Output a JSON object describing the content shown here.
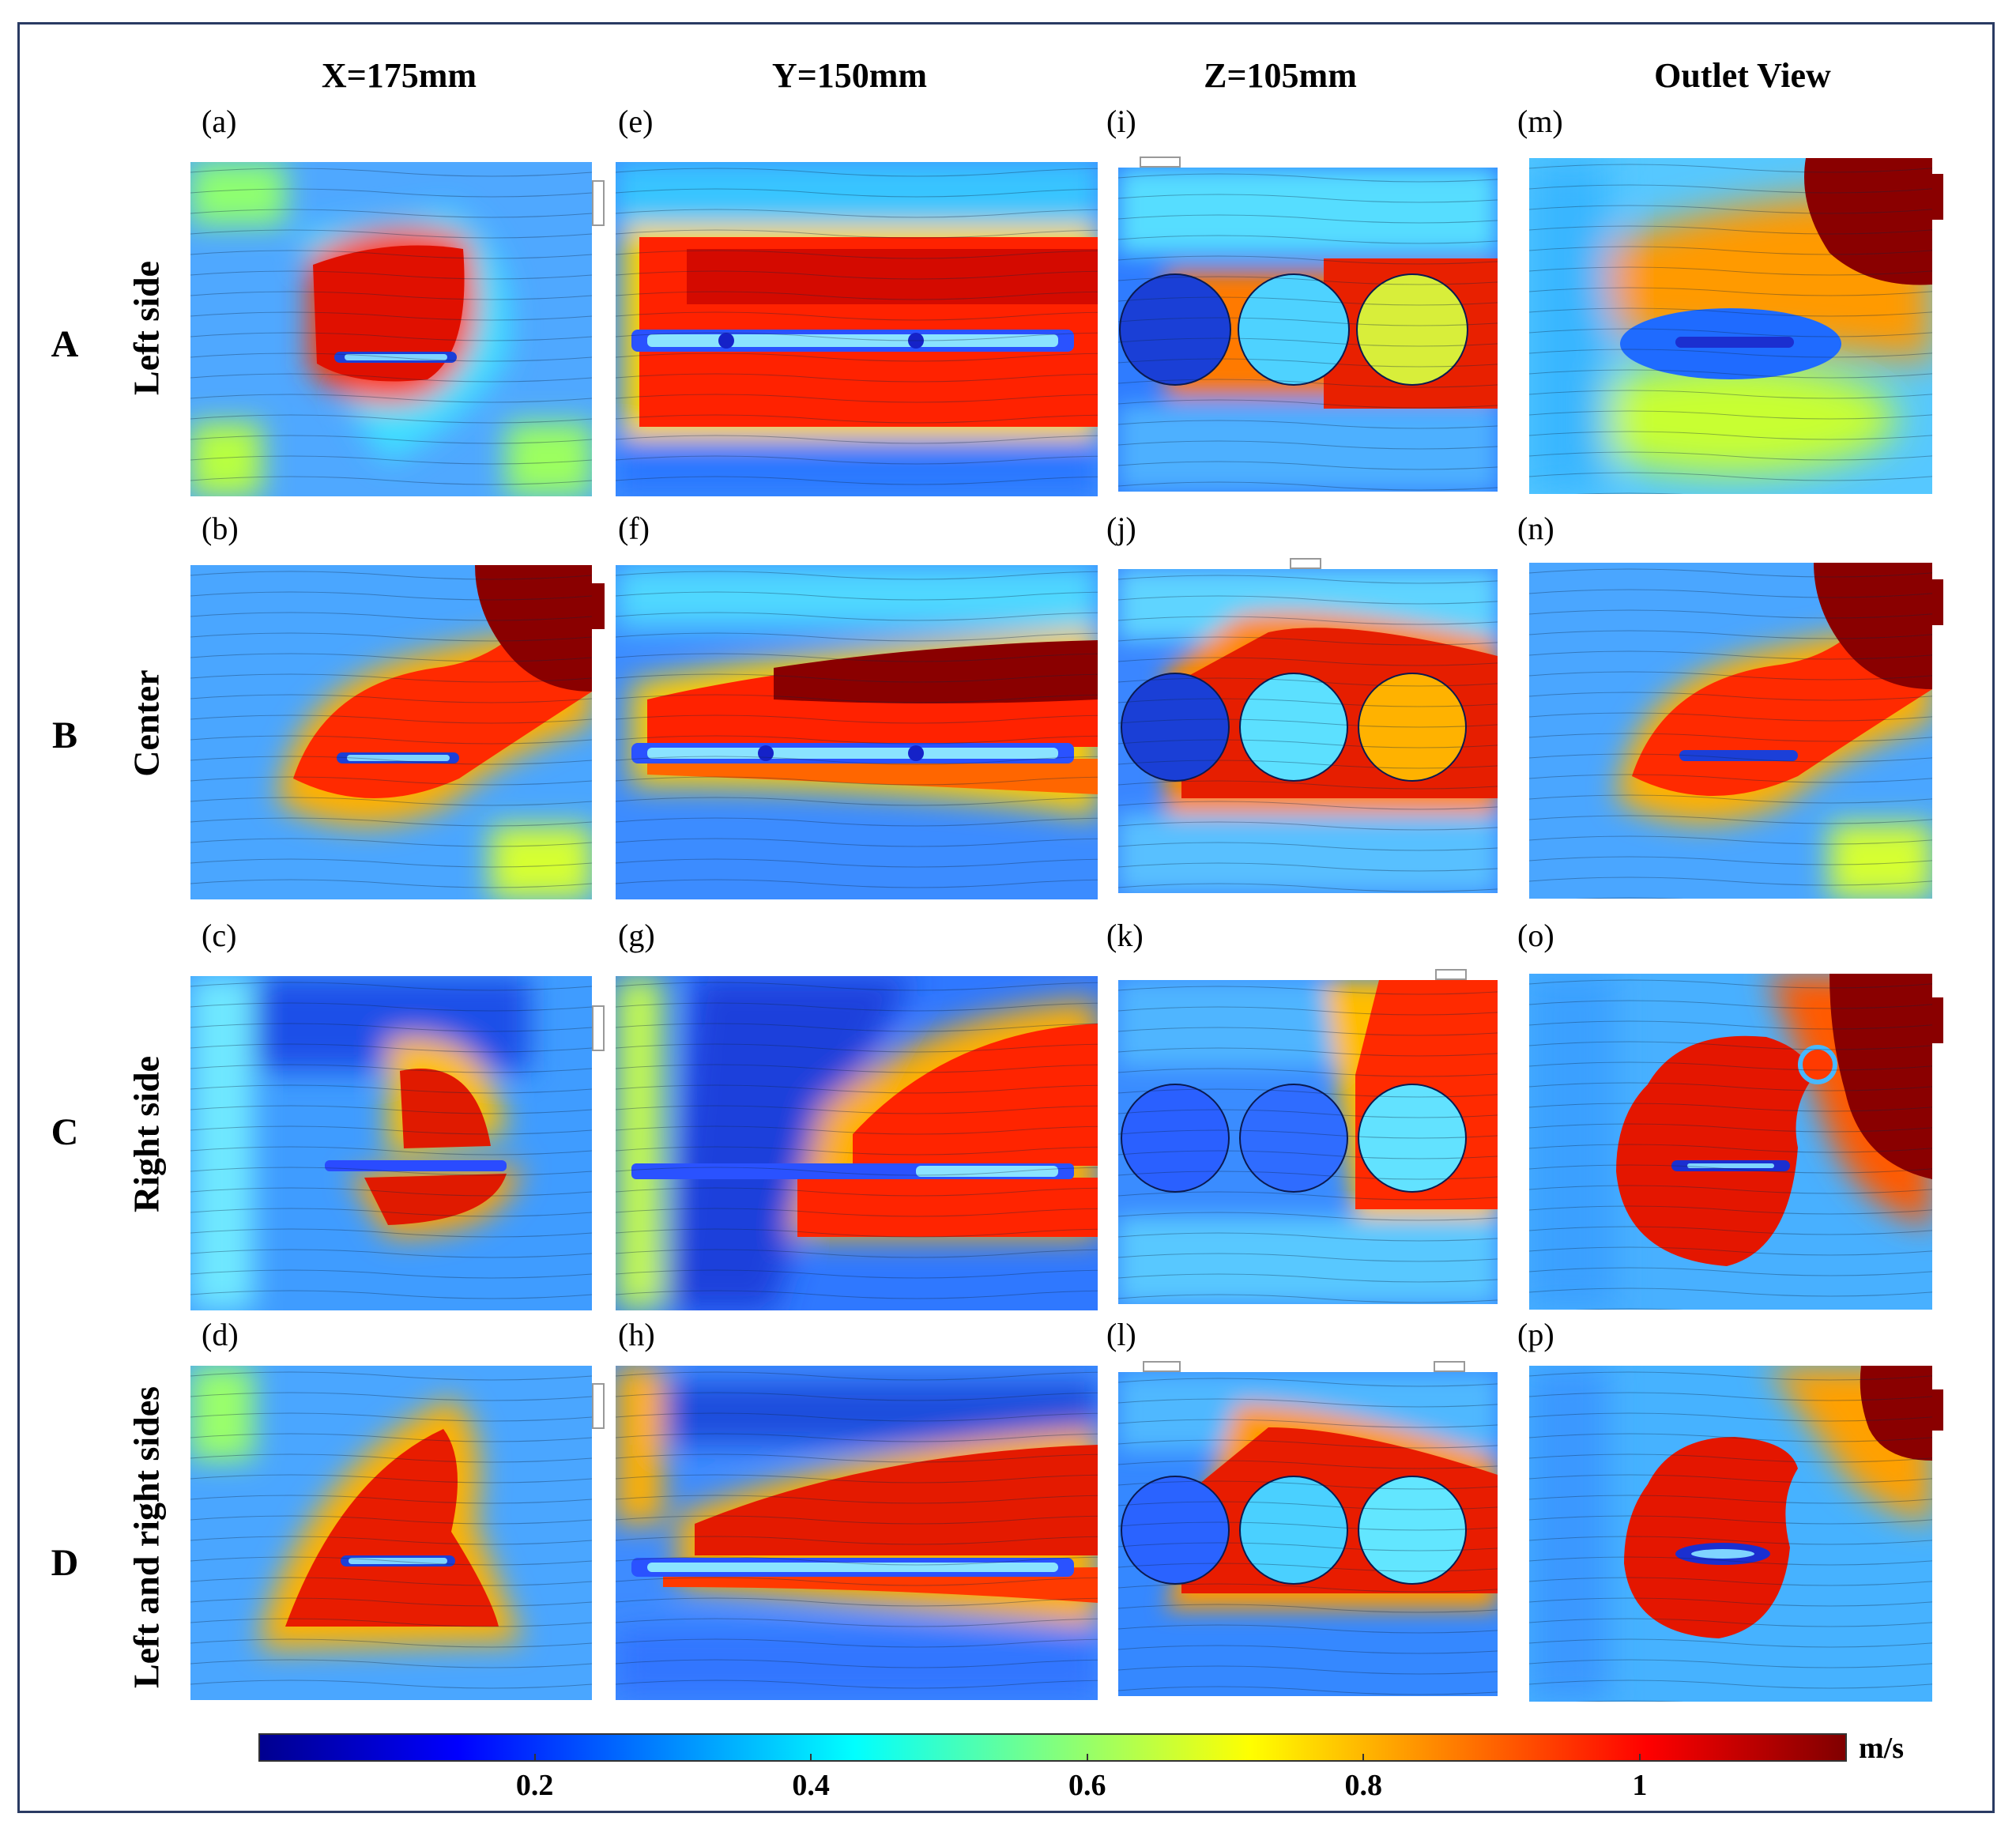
{
  "columns": [
    "X=175mm",
    "Y=150mm",
    "Z=105mm",
    "Outlet View"
  ],
  "rows": [
    {
      "letter": "A",
      "name": "Left side"
    },
    {
      "letter": "B",
      "name": "Center"
    },
    {
      "letter": "C",
      "name": "Right side"
    },
    {
      "letter": "D",
      "name": "Left and right sides"
    }
  ],
  "panel_labels": [
    "(a)",
    "(e)",
    "(i)",
    "(m)",
    "(b)",
    "(f)",
    "(j)",
    "(n)",
    "(c)",
    "(g)",
    "(k)",
    "(o)",
    "(d)",
    "(h)",
    "(l)",
    "(p)"
  ],
  "colorbar": {
    "unit": "m/s",
    "ticks": [
      "0.2",
      "0.4",
      "0.6",
      "0.8",
      "1"
    ],
    "tick_values": [
      0.2,
      0.4,
      0.6,
      0.8,
      1.0
    ],
    "min": 0.0,
    "max": 1.15,
    "colormap": [
      "#00008f",
      "#0000ff",
      "#0080ff",
      "#00ffff",
      "#80ff80",
      "#ffff00",
      "#ff8000",
      "#ff0000",
      "#800000"
    ]
  }
}
